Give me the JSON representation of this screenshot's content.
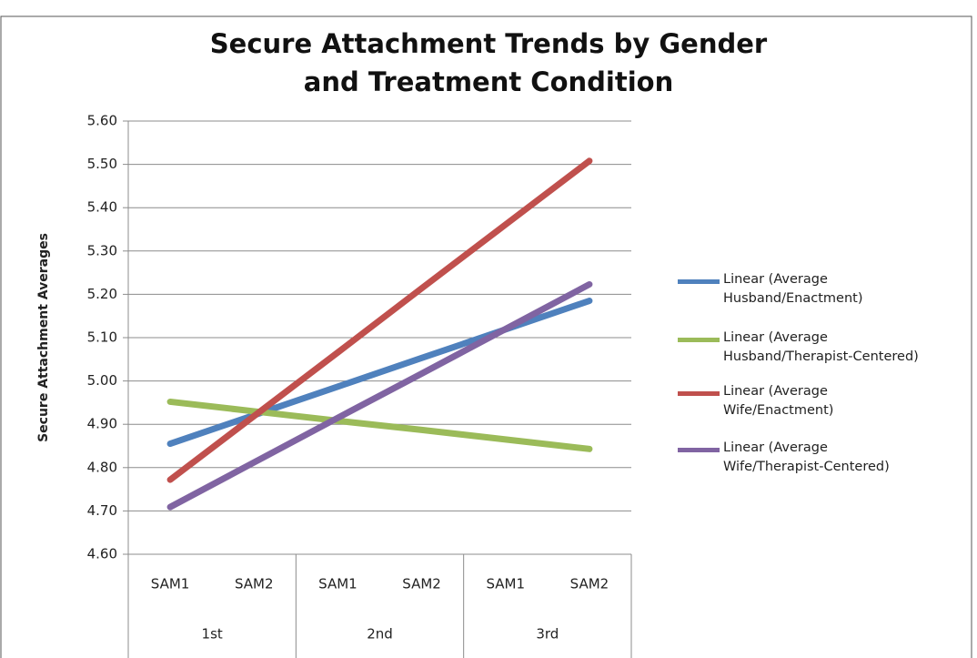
{
  "chart_data": {
    "type": "line",
    "title": "Secure Attachment Trends by Gender and Treatment Condition",
    "ylabel": "Secure Attachment Averages",
    "categories": [
      "SAM1",
      "SAM2",
      "SAM1",
      "SAM2",
      "SAM1",
      "SAM2"
    ],
    "groups": [
      "1st",
      "2nd",
      "3rd"
    ],
    "ylim": [
      4.6,
      5.6
    ],
    "yticks": [
      {
        "value": 4.6,
        "label": "4.60"
      },
      {
        "value": 4.7,
        "label": "4.70"
      },
      {
        "value": 4.8,
        "label": "4.80"
      },
      {
        "value": 4.9,
        "label": "4.90"
      },
      {
        "value": 5.0,
        "label": "5.00"
      },
      {
        "value": 5.1,
        "label": "5.10"
      },
      {
        "value": 5.2,
        "label": "5.20"
      },
      {
        "value": 5.3,
        "label": "5.30"
      },
      {
        "value": 5.4,
        "label": "5.40"
      },
      {
        "value": 5.5,
        "label": "5.50"
      },
      {
        "value": 5.6,
        "label": "5.60"
      }
    ],
    "grid": true,
    "legend": "right",
    "series": [
      {
        "name": "Linear (Average Husband/Enactment)",
        "color": "#4f81bd",
        "values": [
          4.855,
          4.921,
          4.987,
          5.053,
          5.119,
          5.185
        ]
      },
      {
        "name": "Linear (Average Husband/Therapist-Centered)",
        "color": "#9bbb59",
        "values": [
          4.952,
          4.93,
          4.908,
          4.887,
          4.865,
          4.843
        ]
      },
      {
        "name": "Linear (Average Wife/Enactment)",
        "color": "#c0504d",
        "values": [
          4.772,
          4.919,
          5.066,
          5.214,
          5.361,
          5.508
        ]
      },
      {
        "name": "Linear (Average Wife/Therapist-Centered)",
        "color": "#8064a2",
        "values": [
          4.709,
          4.812,
          4.915,
          5.017,
          5.12,
          5.223
        ]
      }
    ]
  }
}
